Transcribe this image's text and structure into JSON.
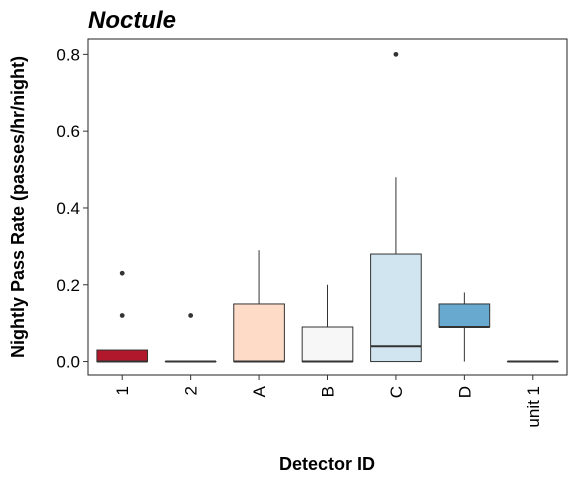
{
  "chart_data": {
    "type": "boxplot",
    "title": "Noctule",
    "xlabel": "Detector ID",
    "ylabel": "Nightly Pass Rate (passes/hr/night)",
    "ylim": [
      -0.035,
      0.84
    ],
    "yticks": [
      0.0,
      0.2,
      0.4,
      0.6,
      0.8
    ],
    "ytick_labels": [
      "0.0",
      "0.2",
      "0.4",
      "0.6",
      "0.8"
    ],
    "grid": false,
    "legend": "none",
    "categories": [
      "1",
      "2",
      "A",
      "B",
      "C",
      "D",
      "unit 1"
    ],
    "boxes": [
      {
        "category": "1",
        "whisker_low": 0.0,
        "q1": 0.0,
        "median": 0.0,
        "q3": 0.03,
        "whisker_high": 0.03,
        "outliers": [
          0.12,
          0.23
        ],
        "color": "#b2182b"
      },
      {
        "category": "2",
        "whisker_low": 0.0,
        "q1": 0.0,
        "median": 0.0,
        "q3": 0.0,
        "whisker_high": 0.0,
        "outliers": [
          0.12
        ],
        "color": "#d6604d"
      },
      {
        "category": "A",
        "whisker_low": 0.0,
        "q1": 0.0,
        "median": 0.0,
        "q3": 0.15,
        "whisker_high": 0.29,
        "outliers": [],
        "color": "#fddbc7"
      },
      {
        "category": "B",
        "whisker_low": 0.0,
        "q1": 0.0,
        "median": 0.0,
        "q3": 0.09,
        "whisker_high": 0.2,
        "outliers": [],
        "color": "#f7f7f7"
      },
      {
        "category": "C",
        "whisker_low": 0.0,
        "q1": 0.0,
        "median": 0.04,
        "q3": 0.28,
        "whisker_high": 0.48,
        "outliers": [
          0.8
        ],
        "color": "#d1e5f0"
      },
      {
        "category": "D",
        "whisker_low": 0.0,
        "q1": 0.09,
        "median": 0.09,
        "q3": 0.15,
        "whisker_high": 0.18,
        "outliers": [],
        "color": "#67a9cf"
      },
      {
        "category": "unit 1",
        "whisker_low": 0.0,
        "q1": 0.0,
        "median": 0.0,
        "q3": 0.0,
        "whisker_high": 0.0,
        "outliers": [],
        "color": "#2166ac"
      }
    ]
  }
}
